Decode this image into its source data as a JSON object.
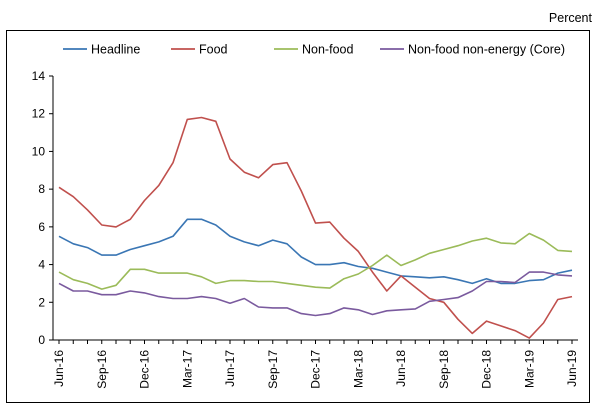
{
  "unit_label": "Percent",
  "chart_data": {
    "type": "line",
    "title": "",
    "xlabel": "",
    "ylabel": "",
    "ylim": [
      0,
      14
    ],
    "y_ticks": [
      0,
      2,
      4,
      6,
      8,
      10,
      12,
      14
    ],
    "grid": false,
    "legend_position": "top",
    "x": [
      "Jun-16",
      "Jul-16",
      "Aug-16",
      "Sep-16",
      "Oct-16",
      "Nov-16",
      "Dec-16",
      "Jan-17",
      "Feb-17",
      "Mar-17",
      "Apr-17",
      "May-17",
      "Jun-17",
      "Jul-17",
      "Aug-17",
      "Sep-17",
      "Oct-17",
      "Nov-17",
      "Dec-17",
      "Jan-18",
      "Feb-18",
      "Mar-18",
      "Apr-18",
      "May-18",
      "Jun-18",
      "Jul-18",
      "Aug-18",
      "Sep-18",
      "Oct-18",
      "Nov-18",
      "Dec-18",
      "Jan-19",
      "Feb-19",
      "Mar-19",
      "Apr-19",
      "May-19",
      "Jun-19"
    ],
    "x_tick_labels": [
      "Jun-16",
      "Sep-16",
      "Dec-16",
      "Mar-17",
      "Jun-17",
      "Sep-17",
      "Dec-17",
      "Mar-18",
      "Jun-18",
      "Sep-18",
      "Dec-18",
      "Mar-19",
      "Jun-19"
    ],
    "series": [
      {
        "name": "Headline",
        "color": "#3a76b4",
        "values": [
          5.5,
          5.1,
          4.9,
          4.5,
          4.5,
          4.8,
          5.0,
          5.2,
          5.5,
          6.4,
          6.4,
          6.1,
          5.5,
          5.2,
          5.0,
          5.3,
          5.1,
          4.4,
          4.0,
          4.0,
          4.1,
          3.9,
          3.8,
          3.6,
          3.4,
          3.35,
          3.3,
          3.35,
          3.2,
          3.0,
          3.25,
          3.0,
          3.0,
          3.15,
          3.2,
          3.55,
          3.7
        ]
      },
      {
        "name": "Food",
        "color": "#c0504d",
        "values": [
          8.1,
          7.6,
          6.9,
          6.1,
          6.0,
          6.4,
          7.4,
          8.2,
          9.4,
          11.7,
          11.8,
          11.6,
          9.6,
          8.9,
          8.6,
          9.3,
          9.4,
          7.9,
          6.2,
          6.25,
          5.4,
          4.7,
          3.6,
          2.6,
          3.4,
          2.8,
          2.2,
          2.0,
          1.1,
          0.35,
          1.0,
          0.75,
          0.5,
          0.1,
          0.9,
          2.15,
          2.3
        ]
      },
      {
        "name": "Non-food",
        "color": "#9bbb59",
        "values": [
          3.6,
          3.2,
          3.0,
          2.7,
          2.9,
          3.75,
          3.75,
          3.55,
          3.55,
          3.55,
          3.35,
          3.0,
          3.15,
          3.15,
          3.1,
          3.1,
          3.0,
          2.9,
          2.8,
          2.75,
          3.25,
          3.5,
          3.95,
          4.5,
          3.95,
          4.25,
          4.6,
          4.8,
          5.0,
          5.25,
          5.4,
          5.15,
          5.1,
          5.65,
          5.3,
          4.75,
          4.7
        ]
      },
      {
        "name": "Non-food non-energy (Core)",
        "color": "#7a5a9e",
        "values": [
          3.0,
          2.6,
          2.6,
          2.4,
          2.4,
          2.6,
          2.5,
          2.3,
          2.2,
          2.2,
          2.3,
          2.2,
          1.95,
          2.2,
          1.75,
          1.7,
          1.7,
          1.4,
          1.3,
          1.4,
          1.7,
          1.6,
          1.35,
          1.55,
          1.6,
          1.65,
          2.05,
          2.15,
          2.25,
          2.6,
          3.1,
          3.1,
          3.05,
          3.6,
          3.6,
          3.45,
          3.4
        ]
      }
    ]
  }
}
